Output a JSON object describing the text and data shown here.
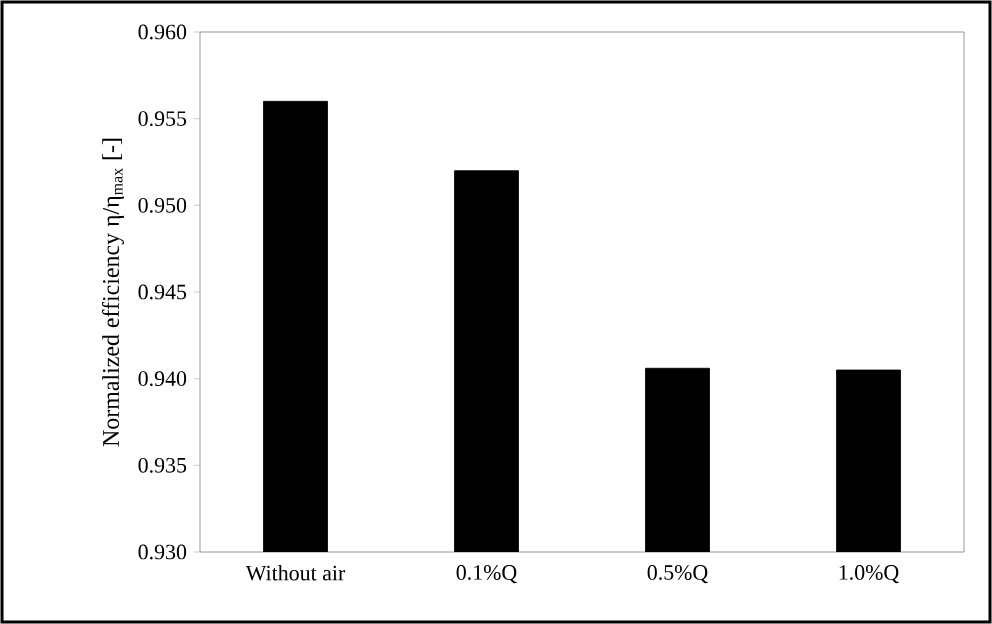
{
  "chart_data": {
    "type": "bar",
    "ylabel": "Normalized efficiency η/η$_{max}$ [-]",
    "categories": [
      "Without air",
      "0.1%Q",
      "0.5%Q",
      "1.0%Q"
    ],
    "values": [
      0.956,
      0.952,
      0.9406,
      0.9405
    ],
    "color": "#000000",
    "ylim": [
      0.93,
      0.96
    ],
    "yticks": [
      {
        "value": 0.93,
        "label": "0.930"
      },
      {
        "value": 0.935,
        "label": "0.935"
      },
      {
        "value": 0.94,
        "label": "0.940"
      },
      {
        "value": 0.945,
        "label": "0.945"
      },
      {
        "value": 0.95,
        "label": "0.950"
      },
      {
        "value": 0.955,
        "label": "0.955"
      },
      {
        "value": 0.96,
        "label": "0.960"
      }
    ],
    "grid": false
  }
}
